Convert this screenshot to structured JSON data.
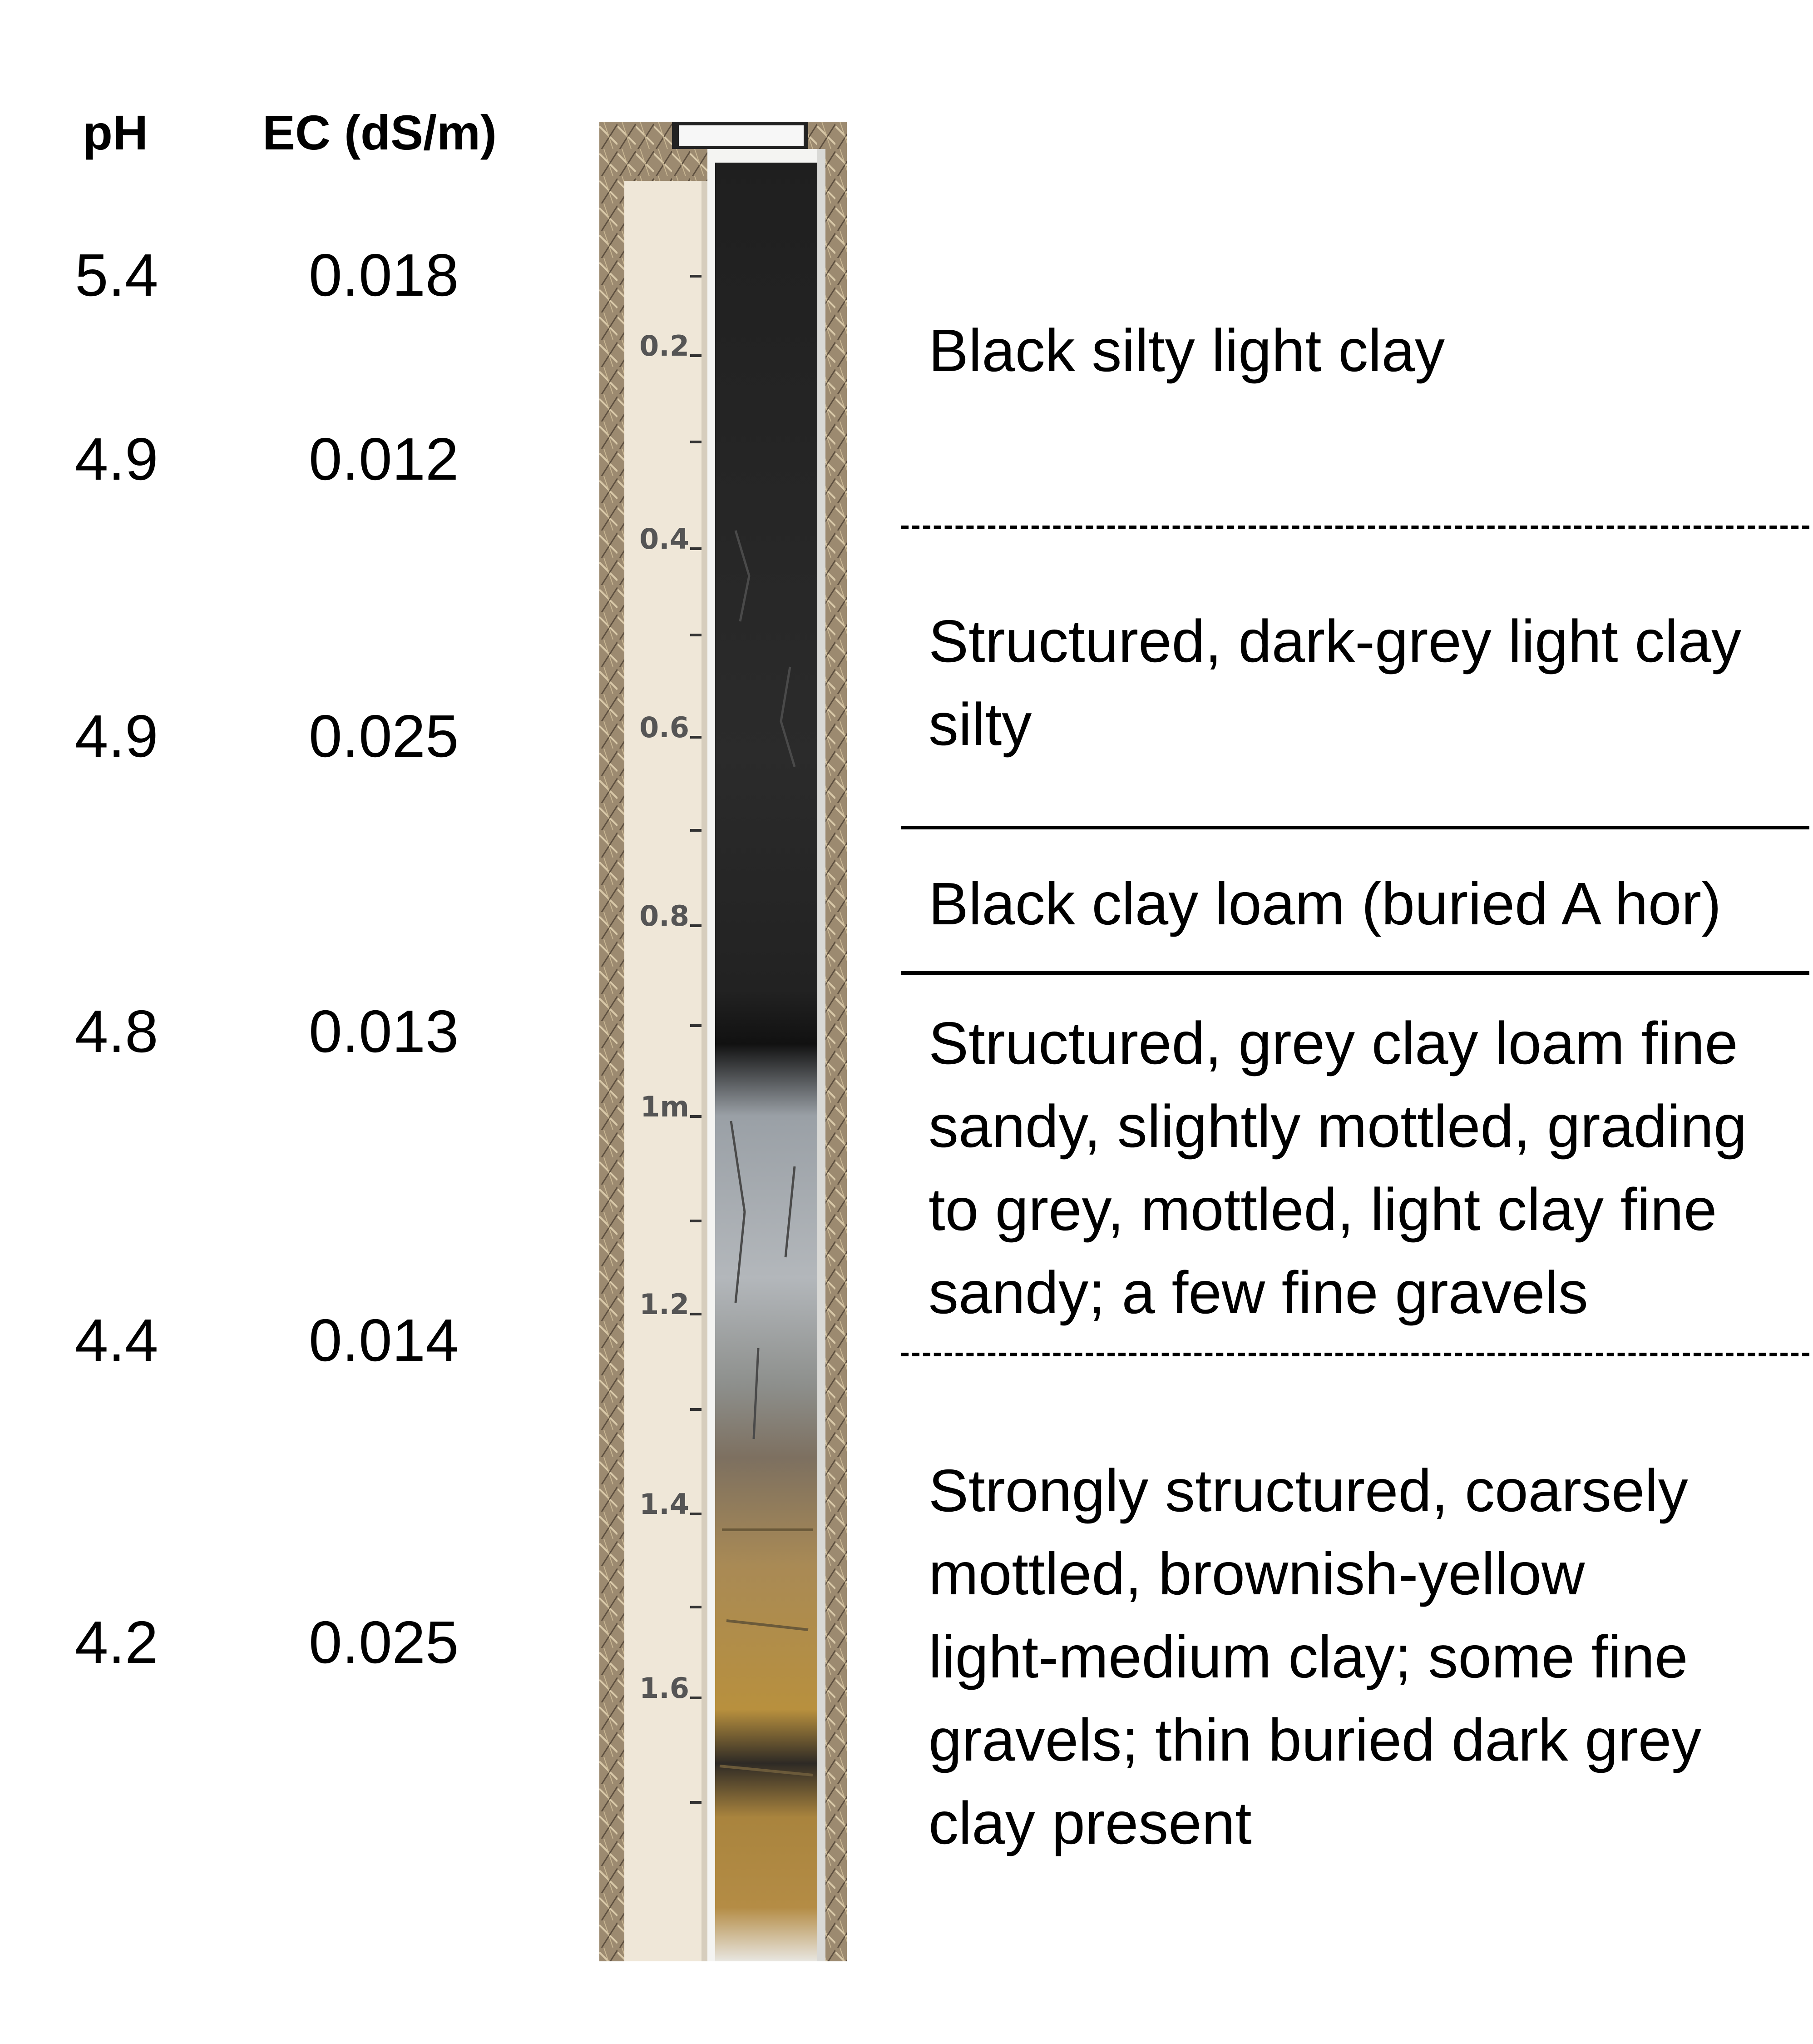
{
  "headers": {
    "ph": "pH",
    "ec": "EC (dS/m)"
  },
  "samples": [
    {
      "ph": "5.4",
      "ec": "0.018"
    },
    {
      "ph": "4.9",
      "ec": "0.012"
    },
    {
      "ph": "4.9",
      "ec": "0.025"
    },
    {
      "ph": "4.8",
      "ec": "0.013"
    },
    {
      "ph": "4.4",
      "ec": "0.014"
    },
    {
      "ph": "4.2",
      "ec": "0.025"
    }
  ],
  "ruler_labels": [
    "0.2",
    "0.4",
    "0.6",
    "0.8",
    "1m",
    "1.2",
    "1.4",
    "1.6"
  ],
  "horizons": [
    {
      "lines": [
        "Black silty light clay"
      ]
    },
    {
      "lines": [
        "Structured, dark-grey light clay",
        "silty"
      ]
    },
    {
      "lines": [
        "Black clay loam (buried A hor)"
      ]
    },
    {
      "lines": [
        "Structured, grey  clay loam fine",
        "sandy, slightly mottled, grading",
        "to grey, mottled, light clay fine",
        "sandy; a few fine gravels"
      ]
    },
    {
      "lines": [
        "Strongly structured, coarsely",
        "mottled, brownish-yellow",
        "light-medium clay; some fine",
        "gravels; thin buried dark grey",
        "clay present"
      ]
    }
  ],
  "boundaries": [
    "dashed",
    "solid",
    "solid",
    "dashed"
  ]
}
